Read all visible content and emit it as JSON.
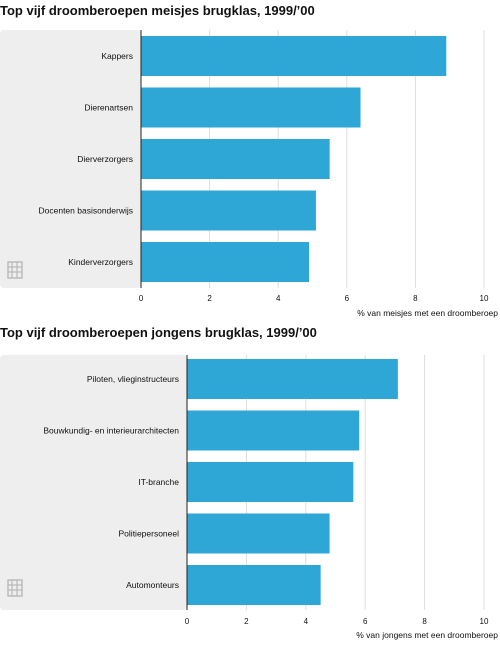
{
  "colors": {
    "bar": "#2ea6d6",
    "panel": "#eeeeee",
    "grid": "#dddddd",
    "axis": "#222222",
    "logo": "#b8b8b8"
  },
  "chart_data": [
    {
      "type": "bar",
      "orientation": "horizontal",
      "title": "Top vijf droomberoepen meisjes brugklas, 1999/’00",
      "categories": [
        "Kappers",
        "Dierenartsen",
        "Dierverzorgers",
        "Docenten basisonderwijs",
        "Kinderverzorgers"
      ],
      "values": [
        8.9,
        6.4,
        5.5,
        5.1,
        4.9
      ],
      "xlabel": "% van meisjes met een droomberoep",
      "ylabel": "",
      "xlim": [
        0,
        10
      ],
      "xticks": [
        "0",
        "2",
        "4",
        "6",
        "8",
        "10"
      ],
      "grid": true,
      "logo_icon": "cbs-logo-icon"
    },
    {
      "type": "bar",
      "orientation": "horizontal",
      "title": "Top vijf droomberoepen jongens brugklas, 1999/’00",
      "categories": [
        "Piloten, vlieginstructeurs",
        "Bouwkundig- en interieurarchitecten",
        "IT-branche",
        "Politiepersoneel",
        "Automonteurs"
      ],
      "values": [
        7.1,
        5.8,
        5.6,
        4.8,
        4.5
      ],
      "xlabel": "% van jongens met een droomberoep",
      "ylabel": "",
      "xlim": [
        0,
        10
      ],
      "xticks": [
        "0",
        "2",
        "4",
        "6",
        "8",
        "10"
      ],
      "grid": true,
      "logo_icon": "cbs-logo-icon"
    }
  ]
}
